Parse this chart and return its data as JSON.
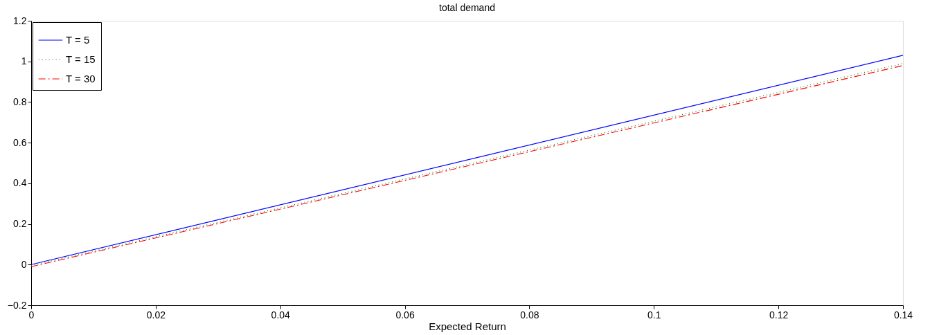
{
  "chart_data": {
    "type": "line",
    "title": "total demand",
    "xlabel": "Expected Return",
    "x": [
      0,
      0.14
    ],
    "series": [
      {
        "name": "T = 5",
        "color": "#0000ff",
        "values": [
          0,
          1.03
        ],
        "line_style": "solid"
      },
      {
        "name": "T = 15",
        "color": "#008000",
        "values": [
          -0.005,
          0.99
        ],
        "line_style": "dotted"
      },
      {
        "name": "T = 30",
        "color": "#ff0000",
        "values": [
          -0.01,
          0.98
        ],
        "line_style": "dashed"
      }
    ],
    "xlim": [
      0,
      0.14
    ],
    "xticks": [
      0,
      0.02,
      0.04,
      0.06,
      0.08,
      0.1,
      0.12,
      0.14
    ],
    "ylim": [
      -0.2,
      1.2
    ],
    "yticks": [
      -0.2,
      0,
      0.2,
      0.4,
      0.6,
      0.8,
      1,
      1.2
    ],
    "grid": false,
    "legend": "top left",
    "marker": "none"
  }
}
